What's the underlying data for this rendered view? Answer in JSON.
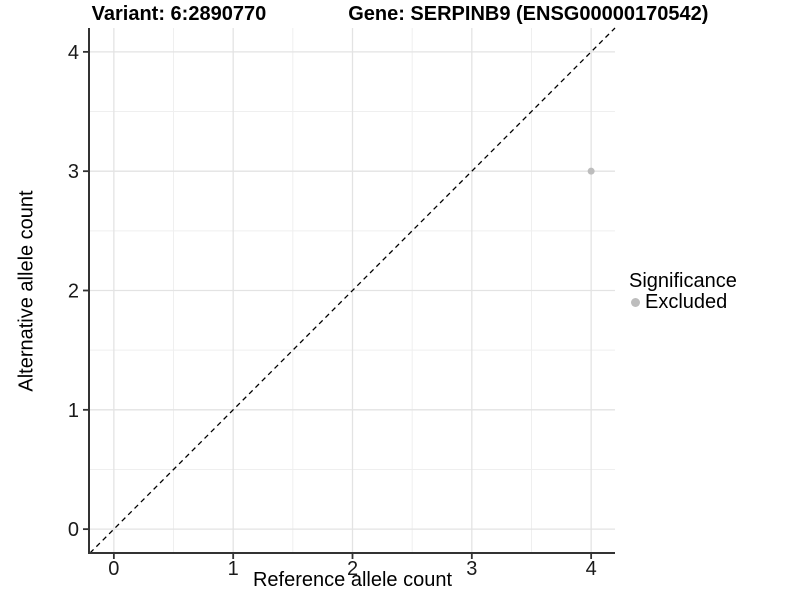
{
  "header": {
    "variant_title": "Variant: 6:2890770",
    "gene_title": "Gene: SERPINB9 (ENSG00000170542)"
  },
  "chart_data": {
    "type": "scatter",
    "title": "Variant: 6:2890770   Gene: SERPINB9 (ENSG00000170542)",
    "xlabel": "Reference allele count",
    "ylabel": "Alternative allele count",
    "xlim": [
      -0.2,
      4.2
    ],
    "ylim": [
      -0.2,
      4.2
    ],
    "x_ticks": [
      0,
      1,
      2,
      3,
      4
    ],
    "y_ticks": [
      0,
      1,
      2,
      3,
      4
    ],
    "x_minor": [
      0.5,
      1.5,
      2.5,
      3.5
    ],
    "y_minor": [
      0.5,
      1.5,
      2.5,
      3.5
    ],
    "grid": true,
    "legend_position": "right",
    "reference_line": {
      "style": "dashed",
      "from": [
        -0.2,
        -0.2
      ],
      "to": [
        4.2,
        4.2
      ],
      "color": "#000000"
    },
    "series": [
      {
        "name": "Excluded",
        "color": "#BDBDBD",
        "points": [
          {
            "x": 4,
            "y": 3
          }
        ]
      }
    ],
    "legend": {
      "title": "Significance",
      "entries": [
        {
          "label": "Excluded",
          "color": "#BDBDBD"
        }
      ]
    },
    "colors": {
      "axis_line": "#333333",
      "major_grid": "#E3E3E3",
      "minor_grid": "#EFEFEF",
      "tick_label": "#1a1a1a"
    }
  }
}
